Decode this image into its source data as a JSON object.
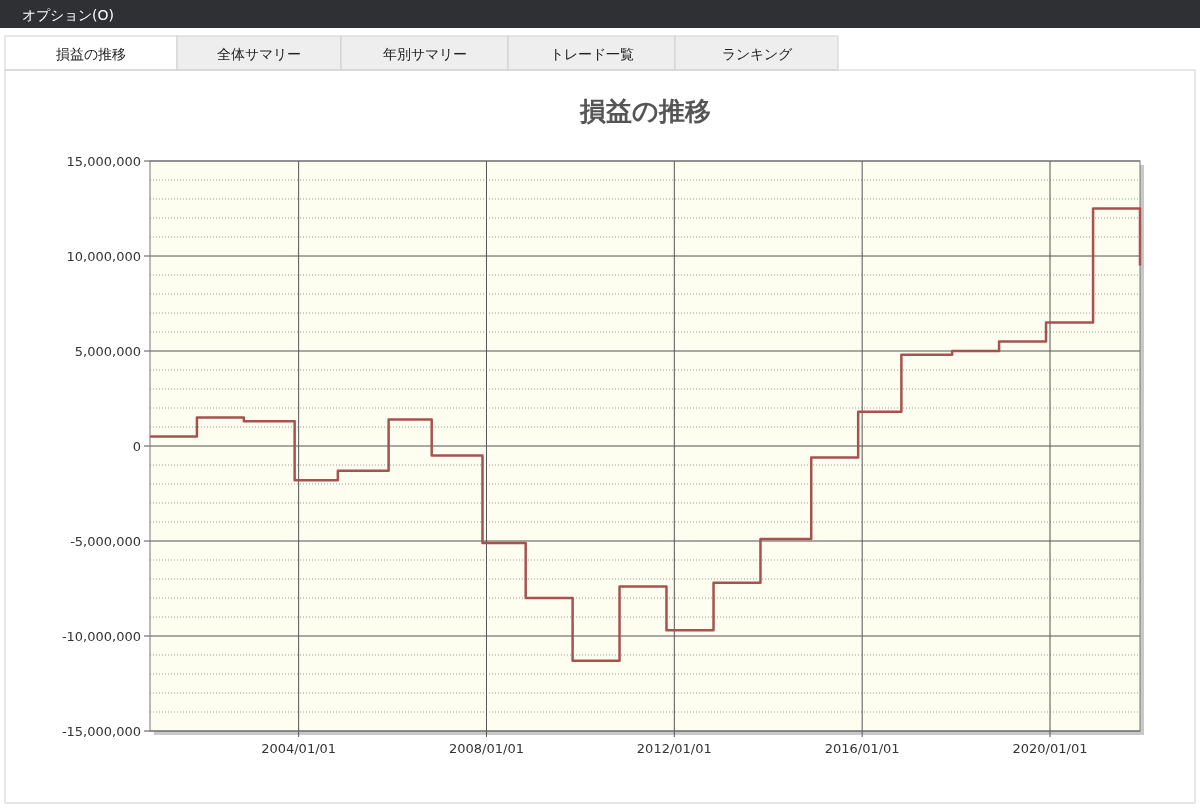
{
  "chart_data": {
    "type": "step",
    "title": "損益の推移",
    "annotations": [
      "オプション(O)",
      "損益の推移",
      "全体サマリー",
      "年別サマリー",
      "トレード一覧",
      "ランキング"
    ],
    "x": [
      "2000-11",
      "2001-11",
      "2002-11",
      "2003-12",
      "2004-11",
      "2005-12",
      "2006-11",
      "2007-12",
      "2008-11",
      "2009-11",
      "2010-11",
      "2011-11",
      "2012-11",
      "2013-11",
      "2014-12",
      "2015-12",
      "2016-11",
      "2017-12",
      "2018-12",
      "2019-12",
      "2020-12",
      "2021-12"
    ],
    "series": [
      {
        "color": "#a8524f",
        "values": [
          500000,
          1500000,
          1300000,
          -1800000,
          -1300000,
          1400000,
          -500000,
          -5100000,
          -8000000,
          -11300000,
          -7400000,
          -9700000,
          -7200000,
          -4900000,
          -600000,
          1800000,
          4800000,
          5000000,
          5500000,
          6500000,
          12500000,
          9500000
        ]
      }
    ],
    "xlim": [
      "2000-11",
      "2021-12"
    ],
    "xticks": [
      {
        "value": "2004-01-01",
        "label": "2004/01/01"
      },
      {
        "value": "2008-01-01",
        "label": "2008/01/01"
      },
      {
        "value": "2012-01-01",
        "label": "2012/01/01"
      },
      {
        "value": "2016-01-01",
        "label": "2016/01/01"
      },
      {
        "value": "2020-01-01",
        "label": "2020/01/01"
      }
    ],
    "ylim": [
      -15000000,
      15000000
    ],
    "yticks": [
      {
        "value": -15000000,
        "label": "-15,000,000"
      },
      {
        "value": -14000000,
        "label": null
      },
      {
        "value": -13000000,
        "label": null
      },
      {
        "value": -12000000,
        "label": null
      },
      {
        "value": -11000000,
        "label": null
      },
      {
        "value": -10000000,
        "label": "-10,000,000"
      },
      {
        "value": -9000000,
        "label": null
      },
      {
        "value": -8000000,
        "label": null
      },
      {
        "value": -7000000,
        "label": null
      },
      {
        "value": -6000000,
        "label": null
      },
      {
        "value": -5000000,
        "label": "-5,000,000"
      },
      {
        "value": -4000000,
        "label": null
      },
      {
        "value": -3000000,
        "label": null
      },
      {
        "value": -2000000,
        "label": null
      },
      {
        "value": -1000000,
        "label": null
      },
      {
        "value": 0,
        "label": "0"
      },
      {
        "value": 1000000,
        "label": null
      },
      {
        "value": 2000000,
        "label": null
      },
      {
        "value": 3000000,
        "label": null
      },
      {
        "value": 4000000,
        "label": null
      },
      {
        "value": 5000000,
        "label": "5,000,000"
      },
      {
        "value": 6000000,
        "label": null
      },
      {
        "value": 7000000,
        "label": null
      },
      {
        "value": 8000000,
        "label": null
      },
      {
        "value": 9000000,
        "label": null
      },
      {
        "value": 10000000,
        "label": "10,000,000"
      },
      {
        "value": 11000000,
        "label": null
      },
      {
        "value": 12000000,
        "label": null
      },
      {
        "value": 13000000,
        "label": null
      },
      {
        "value": 14000000,
        "label": null
      },
      {
        "value": 15000000,
        "label": "15,000,000"
      }
    ],
    "grid": true,
    "marker": "none",
    "line_style": "solid"
  }
}
